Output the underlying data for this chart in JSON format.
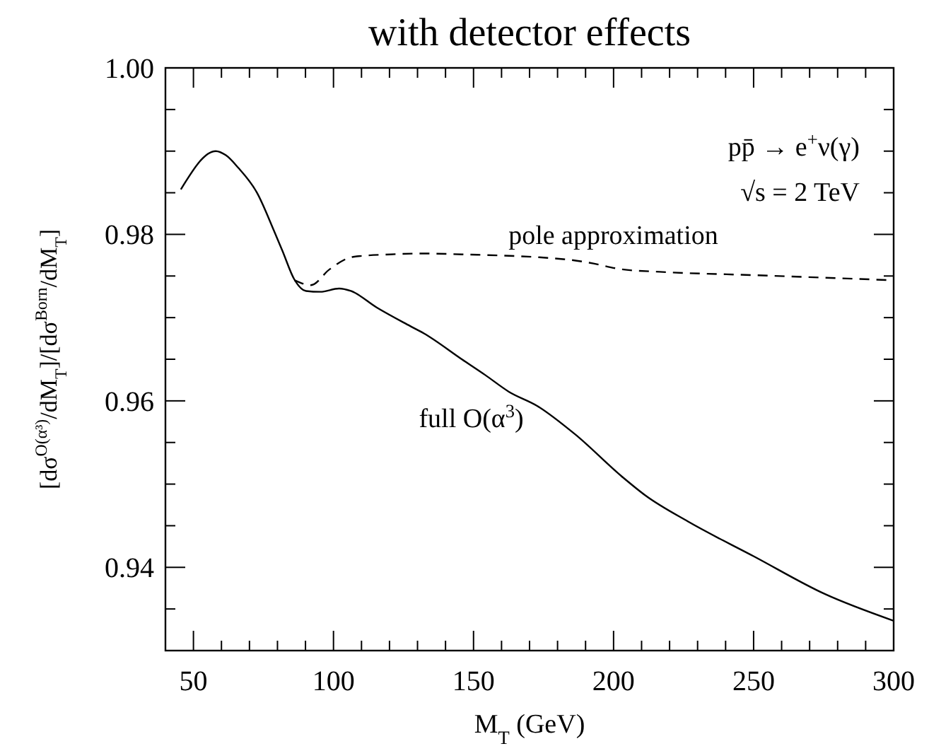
{
  "chart_data": {
    "type": "line",
    "title": "with detector effects",
    "xlabel": "M$_{T}$ (GeV)",
    "ylabel": "[dσ$^{O(α³)}$/dM$_{T}$]/[dσ$^{Born}$/dM$_{T}$]",
    "xlim": [
      40,
      300
    ],
    "ylim": [
      0.93,
      1.0
    ],
    "xticks": [
      {
        "value": 40,
        "label": null
      },
      50,
      {
        "value": 60,
        "label": null
      },
      {
        "value": 70,
        "label": null
      },
      {
        "value": 80,
        "label": null
      },
      {
        "value": 90,
        "label": null
      },
      100,
      {
        "value": 110,
        "label": null
      },
      {
        "value": 120,
        "label": null
      },
      {
        "value": 130,
        "label": null
      },
      {
        "value": 140,
        "label": null
      },
      150,
      {
        "value": 160,
        "label": null
      },
      {
        "value": 170,
        "label": null
      },
      {
        "value": 180,
        "label": null
      },
      {
        "value": 190,
        "label": null
      },
      200,
      {
        "value": 210,
        "label": null
      },
      {
        "value": 220,
        "label": null
      },
      {
        "value": 230,
        "label": null
      },
      {
        "value": 240,
        "label": null
      },
      250,
      {
        "value": 260,
        "label": null
      },
      {
        "value": 270,
        "label": null
      },
      {
        "value": 280,
        "label": null
      },
      {
        "value": 290,
        "label": null
      },
      300
    ],
    "yticks": [
      {
        "value": 0.935,
        "label": null
      },
      0.94,
      {
        "value": 0.945,
        "label": null
      },
      {
        "value": 0.95,
        "label": null
      },
      {
        "value": 0.955,
        "label": null
      },
      0.96,
      {
        "value": 0.965,
        "label": null
      },
      {
        "value": 0.97,
        "label": null
      },
      {
        "value": 0.975,
        "label": null
      },
      0.98,
      {
        "value": 0.985,
        "label": null
      },
      {
        "value": 0.99,
        "label": null
      },
      {
        "value": 0.995,
        "label": null
      },
      {
        "value": 1.0,
        "label": "1.00"
      }
    ],
    "grid": false,
    "marker": "none",
    "series": [
      {
        "name": "full O(α$^{3}$)",
        "color": "#000000",
        "line_style": "solid",
        "x": [
          45.5,
          58,
          61.6,
          66,
          72.7,
          78.8,
          81.8,
          86,
          90.2,
          95.3,
          102,
          106.2,
          115.5,
          127.3,
          132.3,
          145.8,
          154.2,
          162.6,
          172.7,
          186.2,
          203,
          211.5,
          226.6,
          250.2,
          275.4,
          299.8
        ],
        "values": [
          0.9854,
          0.99,
          0.9895,
          0.988,
          0.985,
          0.9804,
          0.978,
          0.9746,
          0.9732,
          0.9731,
          0.9735,
          0.9732,
          0.9712,
          0.969,
          0.9681,
          0.965,
          0.9631,
          0.9611,
          0.9594,
          0.956,
          0.9509,
          0.9486,
          0.9455,
          0.9413,
          0.9368,
          0.9336
        ]
      },
      {
        "name": "pole approximation",
        "color": "#000000",
        "line_style": "dashed",
        "x": [
          86,
          91.9,
          98.6,
          107,
          120.5,
          132,
          145.8,
          182.8,
          191.3,
          203,
          216.5,
          250.2,
          299
        ],
        "values": [
          0.9745,
          0.9739,
          0.9758,
          0.9773,
          0.9776,
          0.9777,
          0.9776,
          0.977,
          0.9766,
          0.9758,
          0.9755,
          0.9751,
          0.9745
        ]
      }
    ],
    "annotations": [
      "pp̄ → e$^{+}$ν(γ)",
      "√s = 2 TeV"
    ]
  }
}
